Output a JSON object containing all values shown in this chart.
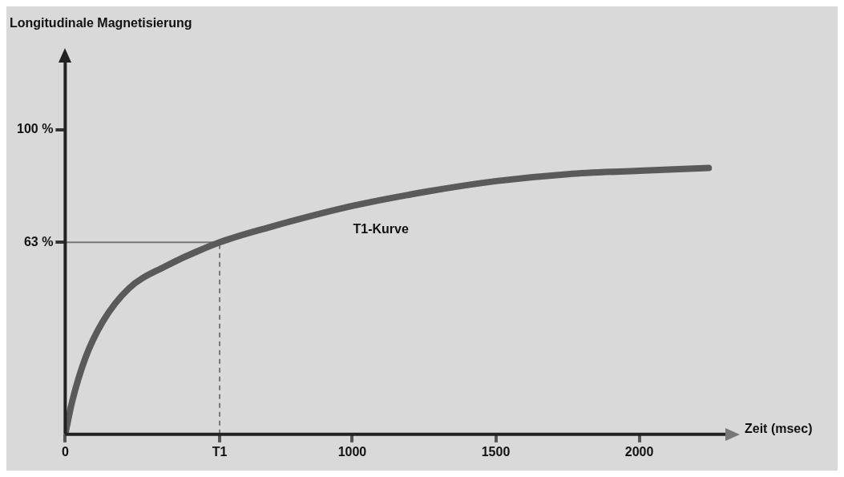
{
  "chart_data": {
    "type": "line",
    "ylabel": "Longitudinale Magnetisierung",
    "xlabel": "Zeit (msec)",
    "x": [
      0,
      24,
      70,
      131,
      223,
      346,
      538,
      713,
      1003,
      1263,
      1502,
      1752,
      2000,
      2242
    ],
    "series": [
      {
        "name": "T1-Kurve",
        "color": "#5a5a5a",
        "values": [
          0,
          10.7,
          25,
          37,
          48,
          55,
          63,
          68,
          75,
          79.7,
          83.1,
          85.4,
          86.5,
          87.4
        ]
      }
    ],
    "xlim": [
      0,
      2300
    ],
    "xticks": [
      0,
      {
        "value": 538,
        "label": "T1"
      },
      1000,
      1500,
      2000
    ],
    "ylim": [
      0,
      122
    ],
    "yticks": [
      {
        "value": 63,
        "label": "63 %"
      },
      {
        "value": 100,
        "label": "100 %"
      }
    ],
    "ref_lines": [
      {
        "axis": "y",
        "value": 63,
        "label": null,
        "line_style": "solid",
        "color": "#777777"
      },
      {
        "axis": "x",
        "value": 538,
        "label": null,
        "line_style": "dashed",
        "color": "#777777"
      }
    ],
    "grid": false,
    "legend": false,
    "marker": "none",
    "line_style": "solid"
  }
}
